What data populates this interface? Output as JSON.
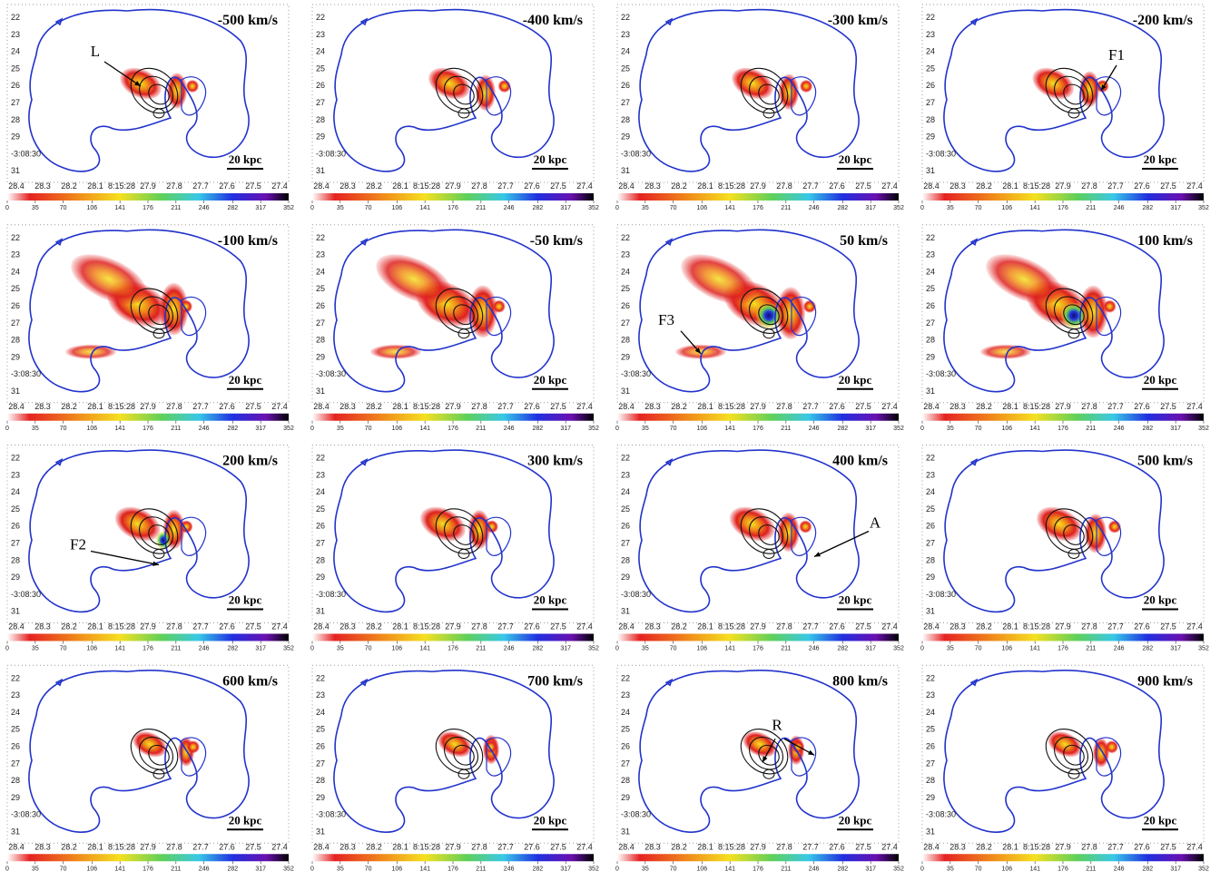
{
  "panels": [
    {
      "velocity": "-500 km/s",
      "annotation": "L"
    },
    {
      "velocity": "-400 km/s"
    },
    {
      "velocity": "-300 km/s"
    },
    {
      "velocity": "-200 km/s",
      "annotation": "F1"
    },
    {
      "velocity": "-100 km/s"
    },
    {
      "velocity": "-50 km/s"
    },
    {
      "velocity": "50 km/s",
      "annotation": "F3"
    },
    {
      "velocity": "100 km/s"
    },
    {
      "velocity": "200 km/s",
      "annotation": "F2"
    },
    {
      "velocity": "300 km/s"
    },
    {
      "velocity": "400 km/s",
      "annotation": "A"
    },
    {
      "velocity": "500 km/s"
    },
    {
      "velocity": "600 km/s"
    },
    {
      "velocity": "700 km/s"
    },
    {
      "velocity": "800 km/s",
      "annotation": "R"
    },
    {
      "velocity": "900 km/s"
    }
  ],
  "axes": {
    "y_ticks": [
      "22",
      "23",
      "24",
      "25",
      "26",
      "27",
      "28",
      "29",
      "-3:08:30",
      "31"
    ],
    "x_ticks": [
      "28.4",
      "28.3",
      "28.2",
      "28.1",
      "8:15:28",
      "27.9",
      "27.8",
      "27.7",
      "27.6",
      "27.5",
      "27.4"
    ]
  },
  "colorbar": {
    "ticks": [
      0,
      35,
      70,
      106,
      141,
      176,
      211,
      246,
      282,
      317,
      352
    ]
  },
  "scale_bar": "20 kpc"
}
